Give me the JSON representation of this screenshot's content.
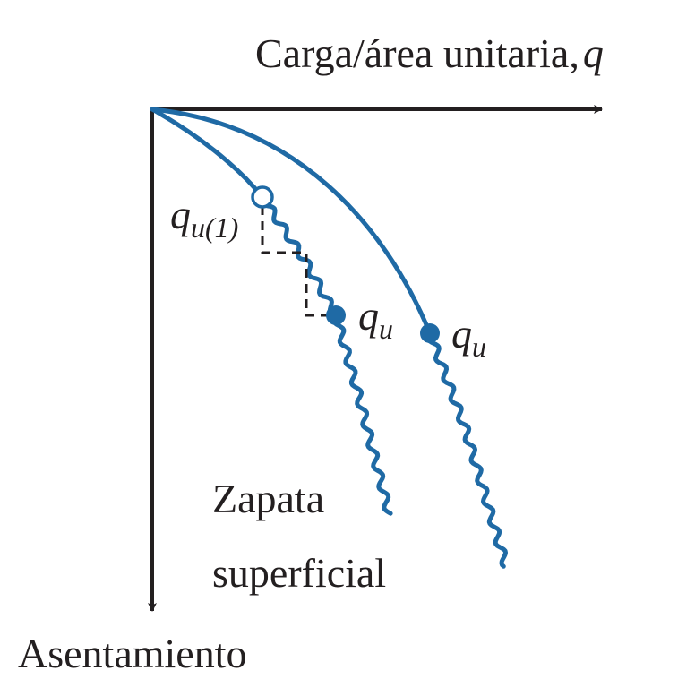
{
  "x_axis_label": {
    "text": "Carga/área unitaria,",
    "symbol": "q"
  },
  "y_axis_label": "Asentamiento",
  "annotations": [
    {
      "symbol": "q",
      "subscript": "u(1)"
    },
    {
      "symbol": "q",
      "subscript": "u"
    },
    {
      "symbol": "q",
      "subscript": "u"
    }
  ],
  "curve_label": [
    "Zapata",
    "superficial"
  ]
}
